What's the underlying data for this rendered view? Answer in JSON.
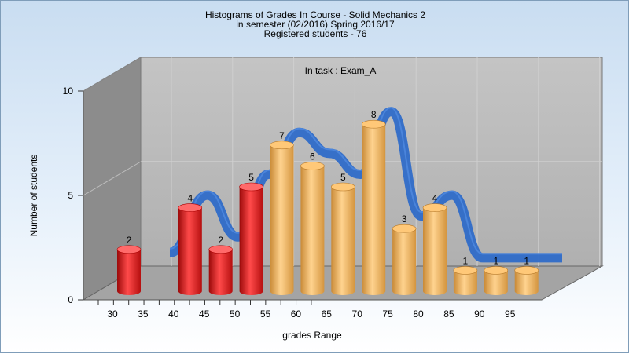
{
  "chart_data": {
    "type": "bar",
    "title_lines": [
      "Histograms of Grades  In Course - Solid Mechanics 2",
      "in semester  (02/2016) Spring 2016/17",
      "Registered students - 76"
    ],
    "annotation": "In task : Exam_A",
    "xlabel": "grades Range",
    "ylabel": "Number of students",
    "ylim": [
      0,
      10
    ],
    "y_ticks": [
      0,
      5,
      10
    ],
    "x_tick_labels": [
      "30",
      "35",
      "40",
      "45",
      "50",
      "55",
      "60",
      "65",
      "70",
      "75",
      "80",
      "85",
      "90",
      "95"
    ],
    "categories": [
      30,
      40,
      45,
      50,
      55,
      60,
      65,
      70,
      75,
      80,
      85,
      90,
      95
    ],
    "values": [
      2,
      4,
      2,
      5,
      7,
      6,
      5,
      8,
      3,
      4,
      1,
      1,
      1
    ],
    "bar_colors": [
      "red",
      "red",
      "red",
      "red",
      "orange",
      "orange",
      "orange",
      "orange",
      "orange",
      "orange",
      "orange",
      "orange",
      "orange"
    ],
    "trend_line": "smoothed ribbon through bar values",
    "grid": true,
    "colors": {
      "red": "#e01c1c",
      "orange": "#f0a850",
      "trend": "#2f6cc8",
      "back_wall": "#b9b9b9",
      "side_wall": "#8a8a8a",
      "floor": "#a0a0a0"
    }
  }
}
